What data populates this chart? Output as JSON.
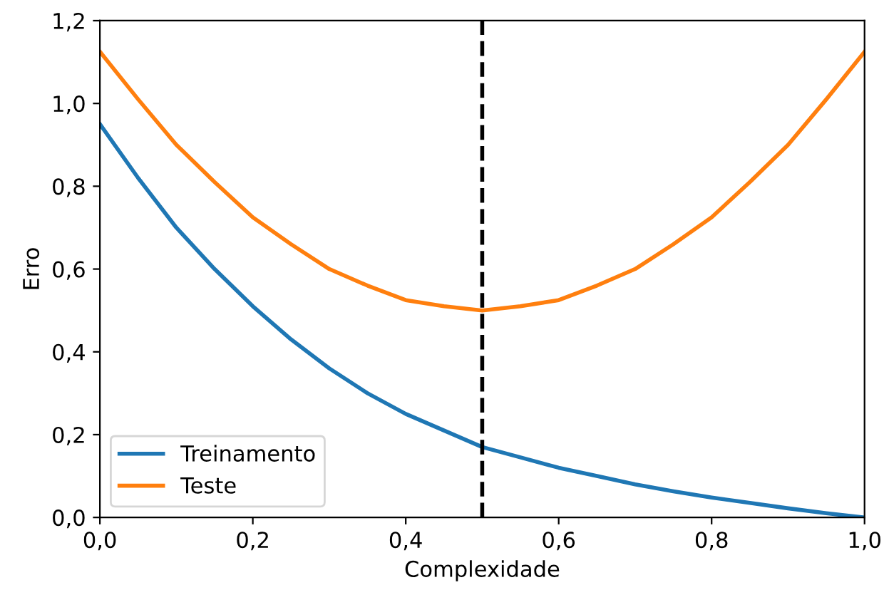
{
  "chart_data": {
    "type": "line",
    "xlabel": "Complexidade",
    "ylabel": "Erro",
    "x": [
      0,
      0.05,
      0.1,
      0.15,
      0.2,
      0.25,
      0.3,
      0.35,
      0.4,
      0.45,
      0.5,
      0.55,
      0.6,
      0.65,
      0.7,
      0.75,
      0.8,
      0.85,
      0.9,
      0.95,
      1
    ],
    "series": [
      {
        "name": "Treinamento",
        "color": "#1f77b4",
        "values": [
          0.95,
          0.82,
          0.7,
          0.6,
          0.51,
          0.43,
          0.36,
          0.3,
          0.25,
          0.21,
          0.17,
          0.145,
          0.12,
          0.1,
          0.08,
          0.063,
          0.048,
          0.035,
          0.022,
          0.01,
          0
        ]
      },
      {
        "name": "Teste",
        "color": "#ff7f0e",
        "values": [
          1.125,
          1.01,
          0.9,
          0.81,
          0.725,
          0.66,
          0.6,
          0.56,
          0.525,
          0.51,
          0.5,
          0.51,
          0.525,
          0.56,
          0.6,
          0.66,
          0.725,
          0.81,
          0.9,
          1.01,
          1.125
        ]
      }
    ],
    "xlim": [
      0,
      1
    ],
    "ylim": [
      0,
      1.2
    ],
    "xticks": [
      {
        "value": 0,
        "label": "0,0"
      },
      {
        "value": 0.2,
        "label": "0,2"
      },
      {
        "value": 0.4,
        "label": "0,4"
      },
      {
        "value": 0.6,
        "label": "0,6"
      },
      {
        "value": 0.8,
        "label": "0,8"
      },
      {
        "value": 1,
        "label": "1,0"
      }
    ],
    "yticks": [
      {
        "value": 0,
        "label": "0,0"
      },
      {
        "value": 0.2,
        "label": "0,2"
      },
      {
        "value": 0.4,
        "label": "0,4"
      },
      {
        "value": 0.6,
        "label": "0,6"
      },
      {
        "value": 0.8,
        "label": "0,8"
      },
      {
        "value": 1,
        "label": "1,0"
      },
      {
        "value": 1.2,
        "label": "1,2"
      }
    ],
    "ref_lines": [
      {
        "axis": "x",
        "value": 0.5,
        "color": "#000000",
        "line_style": "dashed"
      }
    ],
    "legend": "bottom left",
    "grid": false,
    "line_style": "solid",
    "marker": "none"
  }
}
